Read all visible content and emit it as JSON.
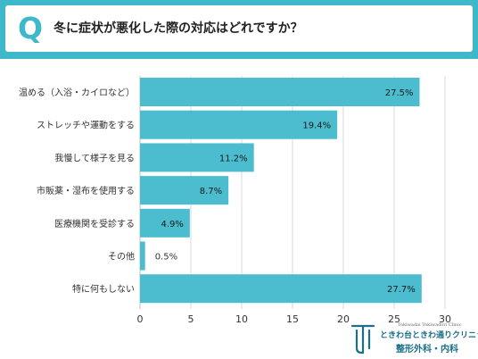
{
  "header": {
    "badge": "Q",
    "title": "冬に症状が悪化した際の対応はどれですか？"
  },
  "logo": {
    "en": "Tokiwadai Tokiwadori Clinic",
    "name": "ときわ台ときわ通りクリニック",
    "dept": "整形外科・内科"
  },
  "colors": {
    "accent": "#3fb9c9",
    "bar": "#4bbdcf",
    "grid": "#d9d9d9",
    "logo": "#1b6f8a"
  },
  "chart_data": {
    "type": "bar",
    "orientation": "horizontal",
    "categories": [
      "温める（入浴・カイロなど）",
      "ストレッチや運動をする",
      "我慢して様子を見る",
      "市販薬・湿布を使用する",
      "医療機関を受診する",
      "その他",
      "特に何もしない"
    ],
    "values": [
      27.5,
      19.4,
      11.2,
      8.7,
      4.9,
      0.5,
      27.7
    ],
    "value_labels": [
      "27.5%",
      "19.4%",
      "11.2%",
      "8.7%",
      "4.9%",
      "0.5%",
      "27.7%"
    ],
    "xlim": [
      0,
      30
    ],
    "xticks": [
      0,
      5,
      10,
      15,
      20,
      25,
      30
    ],
    "grid": true,
    "title": "",
    "xlabel": "",
    "ylabel": ""
  }
}
